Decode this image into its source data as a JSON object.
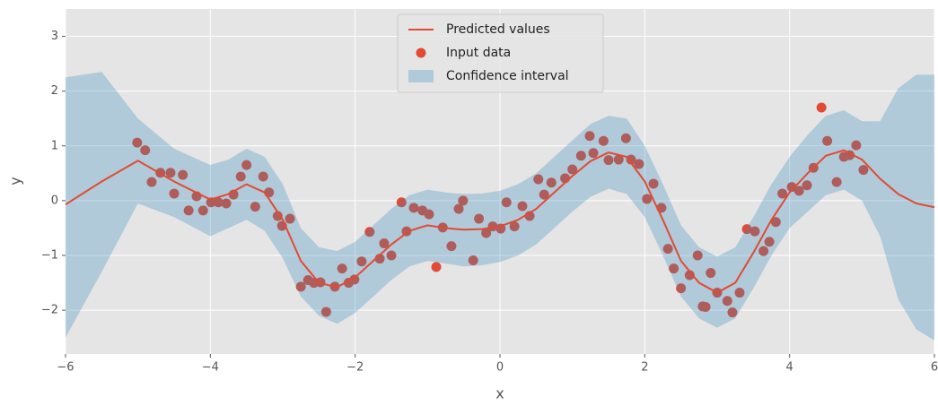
{
  "chart_data": {
    "type": "line",
    "x_label": "x",
    "y_label": "y",
    "xlim": [
      -6,
      6
    ],
    "ylim": [
      -2.8,
      3.5
    ],
    "xticks": [
      {
        "value": -6,
        "label": "−6"
      },
      {
        "value": -4,
        "label": "−4"
      },
      {
        "value": -2,
        "label": "−2"
      },
      0,
      2,
      4,
      6
    ],
    "yticks": [
      {
        "value": -2,
        "label": "−2"
      },
      {
        "value": -1,
        "label": "−1"
      },
      0,
      1,
      2,
      3
    ],
    "grid": true,
    "legend": "upper center",
    "series": [
      {
        "name": "Predicted values",
        "type": "line",
        "color": "#E24A33",
        "x": [
          -6,
          -5.5,
          -5,
          -4.5,
          -4,
          -3.75,
          -3.5,
          -3.25,
          -3,
          -2.75,
          -2.5,
          -2.25,
          -2,
          -1.75,
          -1.5,
          -1.25,
          -1,
          -0.75,
          -0.5,
          -0.25,
          0,
          0.25,
          0.5,
          0.75,
          1,
          1.25,
          1.5,
          1.75,
          2,
          2.25,
          2.5,
          2.75,
          3,
          3.25,
          3.5,
          3.75,
          4,
          4.25,
          4.5,
          4.75,
          5,
          5.25,
          5.5,
          5.75,
          6
        ],
        "values": [
          -0.07,
          0.35,
          0.73,
          0.35,
          0.02,
          0.12,
          0.3,
          0.15,
          -0.35,
          -1.1,
          -1.5,
          -1.58,
          -1.4,
          -1.1,
          -0.8,
          -0.55,
          -0.45,
          -0.5,
          -0.53,
          -0.52,
          -0.47,
          -0.35,
          -0.15,
          0.15,
          0.45,
          0.72,
          0.88,
          0.8,
          0.35,
          -0.35,
          -1.1,
          -1.5,
          -1.68,
          -1.5,
          -0.95,
          -0.35,
          0.15,
          0.5,
          0.82,
          0.92,
          0.75,
          0.4,
          0.12,
          -0.05,
          -0.12
        ]
      },
      {
        "name": "Input data",
        "type": "scatter",
        "color": "#E24A33",
        "x": [
          -5.01,
          -4.9,
          -4.81,
          -4.69,
          -4.55,
          -4.5,
          -4.38,
          -4.3,
          -4.19,
          -4.1,
          -3.99,
          -3.89,
          -3.78,
          -3.68,
          -3.58,
          -3.5,
          -3.38,
          -3.27,
          -3.19,
          -3.07,
          -3.01,
          -2.9,
          -2.75,
          -2.65,
          -2.57,
          -2.48,
          -2.4,
          -2.28,
          -2.18,
          -2.09,
          -2.01,
          -1.91,
          -1.8,
          -1.66,
          -1.6,
          -1.5,
          -1.36,
          -1.29,
          -1.19,
          -1.07,
          -0.98,
          -0.88,
          -0.79,
          -0.67,
          -0.57,
          -0.51,
          -0.37,
          -0.29,
          -0.19,
          -0.1,
          0.01,
          0.09,
          0.2,
          0.31,
          0.41,
          0.53,
          0.61,
          0.71,
          0.9,
          1.0,
          1.12,
          1.24,
          1.29,
          1.43,
          1.5,
          1.64,
          1.74,
          1.81,
          1.92,
          2.03,
          2.12,
          2.23,
          2.32,
          2.4,
          2.5,
          2.62,
          2.73,
          2.8,
          2.84,
          2.91,
          3.0,
          3.14,
          3.21,
          3.31,
          3.41,
          3.52,
          3.64,
          3.72,
          3.81,
          3.9,
          4.03,
          4.13,
          4.24,
          4.33,
          4.44,
          4.52,
          4.65,
          4.75,
          4.83,
          4.92,
          5.02
        ],
        "values": [
          1.06,
          0.92,
          0.34,
          0.51,
          0.51,
          0.13,
          0.47,
          -0.18,
          0.08,
          -0.18,
          -0.03,
          -0.03,
          -0.05,
          0.11,
          0.44,
          0.65,
          -0.11,
          0.44,
          0.15,
          -0.28,
          -0.46,
          -0.33,
          -1.57,
          -1.45,
          -1.5,
          -1.49,
          -2.03,
          -1.57,
          -1.24,
          -1.5,
          -1.44,
          -1.11,
          -0.57,
          -1.06,
          -0.78,
          -1.0,
          -0.03,
          -0.56,
          -0.13,
          -0.18,
          -0.25,
          -1.21,
          -0.49,
          -0.83,
          -0.15,
          0.0,
          -1.09,
          -0.33,
          -0.59,
          -0.47,
          -0.51,
          -0.03,
          -0.47,
          -0.1,
          -0.28,
          0.39,
          0.11,
          0.33,
          0.41,
          0.57,
          0.82,
          1.18,
          0.87,
          1.09,
          0.74,
          0.75,
          1.14,
          0.75,
          0.67,
          0.03,
          0.31,
          -0.13,
          -0.88,
          -1.24,
          -1.6,
          -1.36,
          -1.0,
          -1.93,
          -1.94,
          -1.32,
          -1.68,
          -1.83,
          -2.04,
          -1.68,
          -0.52,
          -0.56,
          -0.92,
          -0.75,
          -0.39,
          0.13,
          0.25,
          0.18,
          0.28,
          0.6,
          1.7,
          1.09,
          0.34,
          0.8,
          0.83,
          1.01,
          0.56
        ]
      },
      {
        "name": "Confidence interval",
        "type": "area",
        "color": "#348ABD",
        "x": [
          -6,
          -5.5,
          -5,
          -4.5,
          -4,
          -3.75,
          -3.5,
          -3.25,
          -3,
          -2.75,
          -2.5,
          -2.25,
          -2,
          -1.75,
          -1.5,
          -1.25,
          -1,
          -0.75,
          -0.5,
          -0.25,
          0,
          0.25,
          0.5,
          0.75,
          1,
          1.25,
          1.5,
          1.75,
          2,
          2.25,
          2.5,
          2.75,
          3,
          3.25,
          3.5,
          3.75,
          4,
          4.25,
          4.5,
          4.75,
          5,
          5.25,
          5.5,
          5.75,
          6
        ],
        "upper": [
          2.25,
          2.35,
          1.5,
          0.95,
          0.65,
          0.75,
          0.95,
          0.8,
          0.3,
          -0.5,
          -0.85,
          -0.92,
          -0.75,
          -0.45,
          -0.15,
          0.1,
          0.2,
          0.15,
          0.12,
          0.13,
          0.18,
          0.3,
          0.5,
          0.8,
          1.1,
          1.4,
          1.55,
          1.5,
          1.0,
          0.3,
          -0.45,
          -0.85,
          -1.02,
          -0.85,
          -0.3,
          0.3,
          0.8,
          1.2,
          1.55,
          1.65,
          1.45,
          1.45,
          2.05,
          2.3,
          2.3
        ],
        "lower": [
          -2.5,
          -1.3,
          -0.05,
          -0.3,
          -0.65,
          -0.5,
          -0.35,
          -0.55,
          -1.05,
          -1.75,
          -2.1,
          -2.25,
          -2.05,
          -1.75,
          -1.45,
          -1.2,
          -1.1,
          -1.15,
          -1.2,
          -1.18,
          -1.12,
          -1.0,
          -0.8,
          -0.5,
          -0.2,
          0.07,
          0.22,
          0.12,
          -0.3,
          -1.0,
          -1.75,
          -2.15,
          -2.32,
          -2.15,
          -1.6,
          -1.0,
          -0.5,
          -0.2,
          0.1,
          0.2,
          0.0,
          -0.65,
          -1.8,
          -2.35,
          -2.55
        ]
      }
    ]
  }
}
